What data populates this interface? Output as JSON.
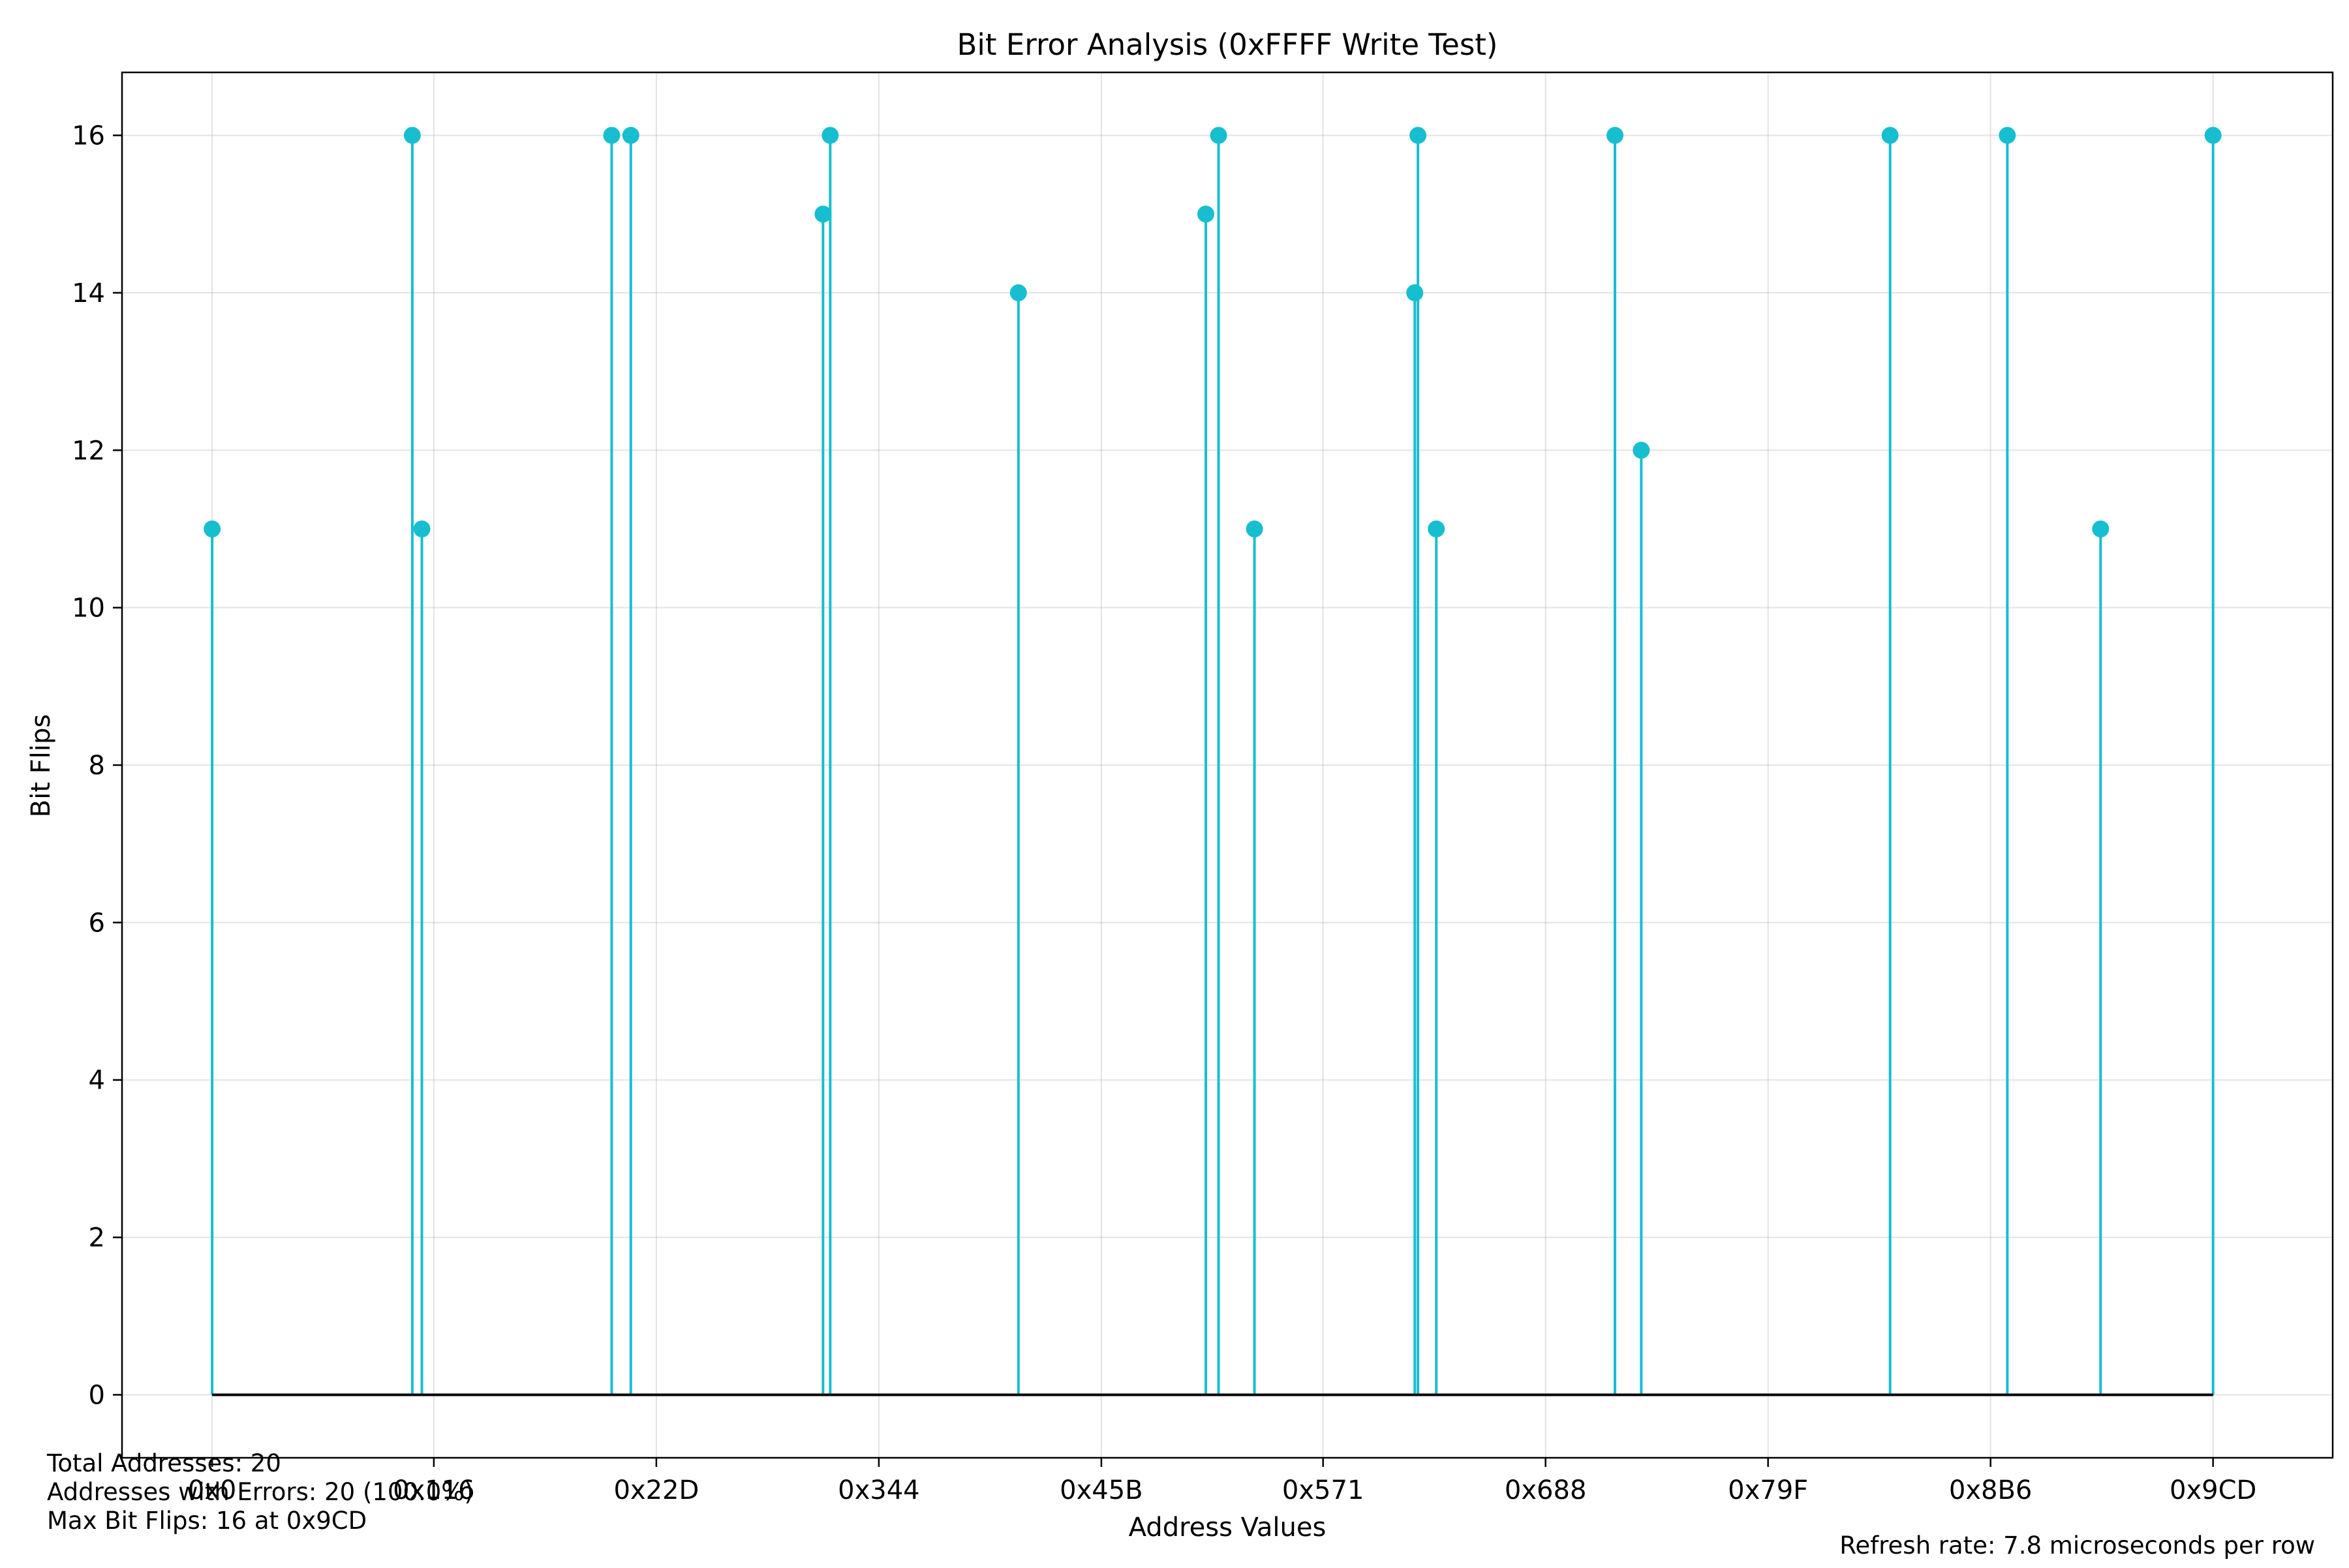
{
  "chart_data": {
    "type": "stem",
    "title": "Bit Error Analysis (0xFFFF Write Test)",
    "xlabel": "Address Values",
    "ylabel": "Bit Flips",
    "xlim": [
      -113,
      2659
    ],
    "ylim": [
      -0.8,
      16.8
    ],
    "x_ticks": [
      {
        "value": 0,
        "label": "0x0"
      },
      {
        "value": 278,
        "label": "0x116"
      },
      {
        "value": 557,
        "label": "0x22D"
      },
      {
        "value": 836,
        "label": "0x344"
      },
      {
        "value": 1115,
        "label": "0x45B"
      },
      {
        "value": 1393,
        "label": "0x571"
      },
      {
        "value": 1672,
        "label": "0x688"
      },
      {
        "value": 1951,
        "label": "0x79F"
      },
      {
        "value": 2230,
        "label": "0x8B6"
      },
      {
        "value": 2509,
        "label": "0x9CD"
      }
    ],
    "y_ticks": [
      0,
      2,
      4,
      6,
      8,
      10,
      12,
      14,
      16
    ],
    "grid": true,
    "color": "#17becf",
    "baseline_color": "#000000",
    "points": [
      {
        "x": 0,
        "y": 11
      },
      {
        "x": 251,
        "y": 16
      },
      {
        "x": 263,
        "y": 11
      },
      {
        "x": 501,
        "y": 16
      },
      {
        "x": 525,
        "y": 16
      },
      {
        "x": 766,
        "y": 15
      },
      {
        "x": 775,
        "y": 16
      },
      {
        "x": 1011,
        "y": 14
      },
      {
        "x": 1246,
        "y": 15
      },
      {
        "x": 1262,
        "y": 16
      },
      {
        "x": 1307,
        "y": 11
      },
      {
        "x": 1508,
        "y": 14
      },
      {
        "x": 1512,
        "y": 16
      },
      {
        "x": 1535,
        "y": 11
      },
      {
        "x": 1759,
        "y": 16
      },
      {
        "x": 1792,
        "y": 12
      },
      {
        "x": 2104,
        "y": 16
      },
      {
        "x": 2251,
        "y": 16
      },
      {
        "x": 2368,
        "y": 11
      },
      {
        "x": 2509,
        "y": 16
      }
    ]
  },
  "stats": {
    "total_addresses": "Total Addresses: 20",
    "addresses_with_errors": "Addresses with Errors: 20 (100.0%)",
    "max_bit_flips": "Max Bit Flips: 16 at 0x9CD"
  },
  "refresh_rate": "Refresh rate: 7.8 microseconds per row"
}
